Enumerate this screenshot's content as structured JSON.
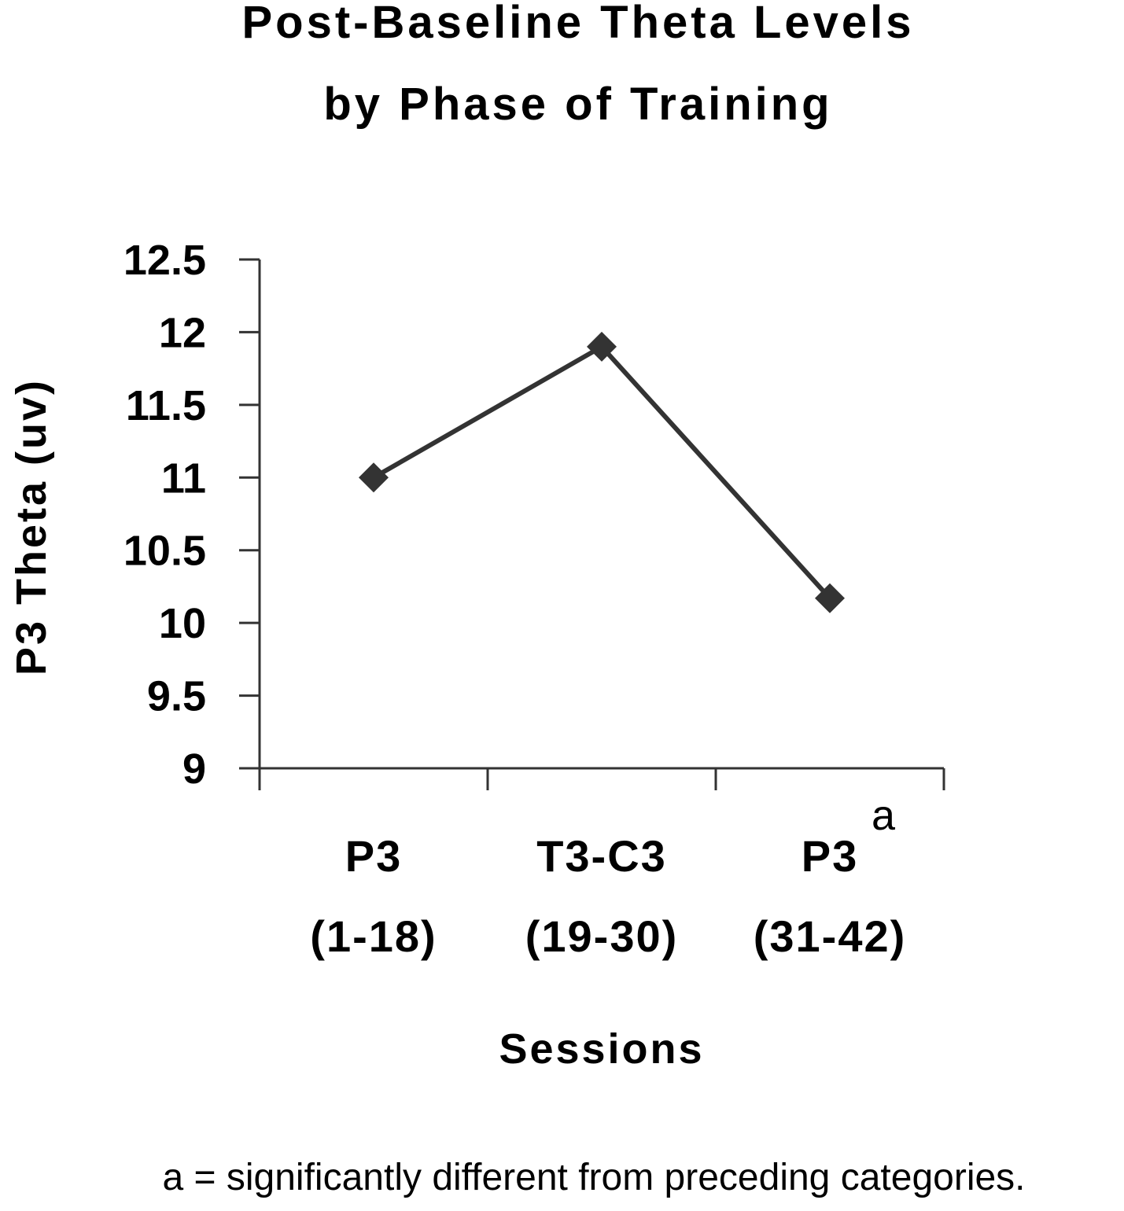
{
  "chart_data": {
    "type": "line",
    "title_lines": [
      "Post-Baseline Theta Levels",
      "by Phase of Training"
    ],
    "ylabel": "P3 Theta (uv)",
    "xlabel": "Sessions",
    "ylim": [
      9,
      12.5
    ],
    "yticks": [
      "12.5",
      "12",
      "11.5",
      "11",
      "10.5",
      "10",
      "9.5",
      "9"
    ],
    "categories": [
      {
        "line1": "P3",
        "line2": "(1-18)",
        "superscript": ""
      },
      {
        "line1": "T3-C3",
        "line2": "(19-30)",
        "superscript": ""
      },
      {
        "line1": "P3",
        "line2": "(31-42)",
        "superscript": "a"
      }
    ],
    "values": [
      11.0,
      11.9,
      10.17
    ],
    "marker": "diamond",
    "line_color": "#333333",
    "marker_color": "#333333",
    "footnote": "a = significantly different from preceding categories."
  }
}
